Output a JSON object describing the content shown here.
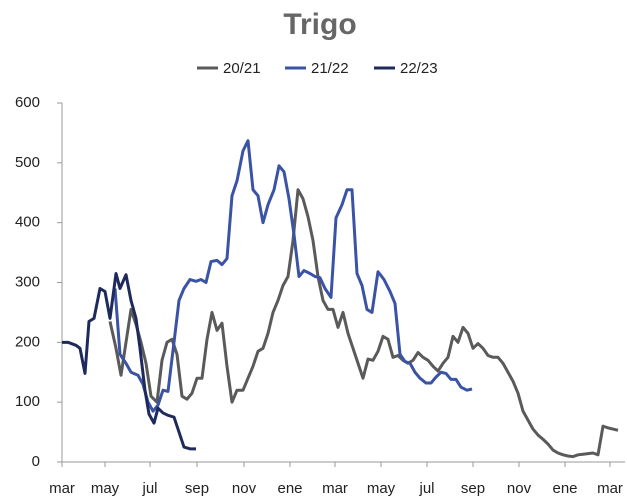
{
  "chart_data": {
    "type": "line",
    "title": "Trigo",
    "xlim": [
      0,
      563
    ],
    "xticks": [
      {
        "value": 0,
        "label": "mar"
      },
      {
        "value": 43,
        "label": "may"
      },
      {
        "value": 88,
        "label": "jul"
      },
      {
        "value": 135,
        "label": "sep"
      },
      {
        "value": 182,
        "label": "nov"
      },
      {
        "value": 228,
        "label": "ene"
      },
      {
        "value": 273,
        "label": "mar"
      },
      {
        "value": 319,
        "label": "may"
      },
      {
        "value": 365,
        "label": "jul"
      },
      {
        "value": 411,
        "label": "sep"
      },
      {
        "value": 457,
        "label": "nov"
      },
      {
        "value": 503,
        "label": "ene"
      },
      {
        "value": 548,
        "label": "mar"
      }
    ],
    "ylim": [
      0,
      600
    ],
    "yticks": [
      0,
      100,
      200,
      300,
      400,
      500,
      600
    ],
    "series": [
      {
        "name": "20/21",
        "color": "#5a5a5a",
        "x": [
          48,
          54,
          59,
          64,
          69,
          74,
          79,
          84,
          89,
          95,
          100,
          105,
          110,
          115,
          120,
          125,
          130,
          135,
          140,
          145,
          150,
          155,
          160,
          165,
          170,
          175,
          181,
          186,
          191,
          196,
          201,
          206,
          211,
          216,
          221,
          226,
          231,
          236,
          241,
          246,
          251,
          256,
          261,
          266,
          271,
          276,
          281,
          286,
          291,
          296,
          301,
          306,
          311,
          316,
          321,
          326,
          331,
          336,
          341,
          346,
          351,
          356,
          361,
          366,
          371,
          376,
          381,
          386,
          391,
          396,
          401,
          406,
          411,
          416,
          421,
          426,
          431,
          436,
          441,
          446,
          451,
          456,
          461,
          466,
          471,
          476,
          481,
          486,
          491,
          496,
          501,
          506,
          511,
          516,
          521,
          526,
          531,
          536,
          541,
          546,
          551,
          556
        ],
        "values": [
          235,
          190,
          145,
          200,
          255,
          230,
          200,
          165,
          110,
          100,
          170,
          200,
          205,
          180,
          110,
          105,
          115,
          140,
          140,
          205,
          250,
          220,
          232,
          160,
          100,
          120,
          120,
          140,
          160,
          185,
          190,
          215,
          250,
          270,
          295,
          310,
          370,
          455,
          440,
          410,
          370,
          310,
          270,
          255,
          255,
          225,
          250,
          215,
          190,
          165,
          140,
          172,
          170,
          185,
          210,
          205,
          175,
          178,
          170,
          165,
          170,
          183,
          175,
          170,
          160,
          152,
          165,
          175,
          210,
          200,
          225,
          215,
          190,
          198,
          190,
          178,
          175,
          175,
          165,
          150,
          135,
          115,
          85,
          70,
          55,
          45,
          38,
          30,
          20,
          15,
          12,
          10,
          9,
          12,
          13,
          14,
          15,
          12,
          60,
          57,
          55,
          53
        ]
      },
      {
        "name": "21/22",
        "color": "#3a53a4",
        "x": [
          53,
          58,
          64,
          69,
          76,
          81,
          86,
          91,
          96,
          101,
          106,
          112,
          117,
          122,
          128,
          134,
          139,
          144,
          149,
          155,
          160,
          165,
          170,
          175,
          181,
          186,
          191,
          196,
          201,
          206,
          212,
          217,
          222,
          227,
          232,
          237,
          242,
          248,
          253,
          258,
          263,
          269,
          274,
          280,
          285,
          290,
          295,
          300,
          305,
          310,
          316,
          322,
          328,
          333,
          338,
          343,
          348,
          353,
          358,
          364,
          369,
          374,
          379,
          384,
          389,
          394,
          399,
          405,
          410
        ],
        "values": [
          290,
          180,
          165,
          150,
          145,
          130,
          100,
          85,
          95,
          120,
          118,
          200,
          270,
          290,
          305,
          302,
          305,
          300,
          335,
          337,
          330,
          340,
          445,
          470,
          520,
          537,
          455,
          445,
          400,
          430,
          455,
          495,
          485,
          440,
          380,
          310,
          320,
          315,
          310,
          308,
          290,
          275,
          408,
          430,
          455,
          455,
          315,
          295,
          255,
          250,
          318,
          305,
          285,
          265,
          180,
          168,
          165,
          150,
          140,
          132,
          132,
          142,
          150,
          148,
          138,
          138,
          125,
          120,
          122
        ]
      },
      {
        "name": "22/23",
        "color": "#1f2a5c",
        "x": [
          0,
          6,
          14,
          18,
          23,
          27,
          32,
          38,
          43,
          48,
          54,
          58,
          64,
          69,
          74,
          78,
          83,
          87,
          92,
          96,
          101,
          106,
          112,
          117,
          122,
          128,
          134
        ],
        "values": [
          200,
          200,
          195,
          190,
          148,
          235,
          240,
          290,
          285,
          240,
          315,
          290,
          313,
          270,
          240,
          190,
          120,
          80,
          65,
          90,
          82,
          78,
          75,
          50,
          25,
          22,
          22
        ]
      }
    ]
  }
}
